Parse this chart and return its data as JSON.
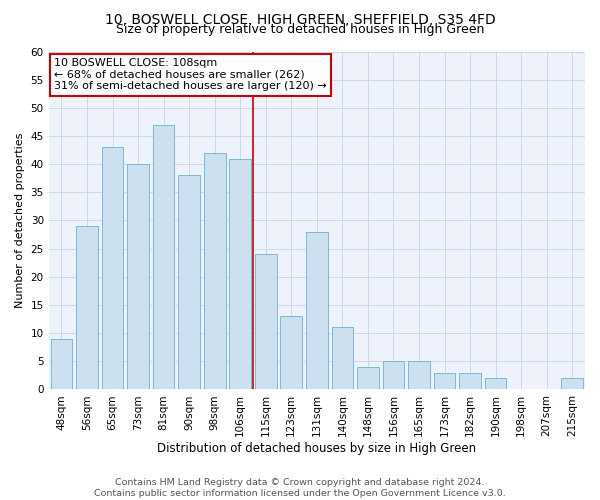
{
  "title1": "10, BOSWELL CLOSE, HIGH GREEN, SHEFFIELD, S35 4FD",
  "title2": "Size of property relative to detached houses in High Green",
  "xlabel": "Distribution of detached houses by size in High Green",
  "ylabel": "Number of detached properties",
  "categories": [
    "48sqm",
    "56sqm",
    "65sqm",
    "73sqm",
    "81sqm",
    "90sqm",
    "98sqm",
    "106sqm",
    "115sqm",
    "123sqm",
    "131sqm",
    "140sqm",
    "148sqm",
    "156sqm",
    "165sqm",
    "173sqm",
    "182sqm",
    "190sqm",
    "198sqm",
    "207sqm",
    "215sqm"
  ],
  "values": [
    9,
    29,
    43,
    40,
    47,
    38,
    42,
    41,
    24,
    13,
    28,
    11,
    4,
    5,
    5,
    3,
    3,
    2,
    0,
    0,
    2
  ],
  "bar_color": "#cce0f0",
  "bar_edge_color": "#7ab8d9",
  "grid_color": "#c8d4e8",
  "background_color": "#eef2fa",
  "vline_color": "#cc0000",
  "vline_x_index": 7,
  "annotation_text": "10 BOSWELL CLOSE: 108sqm\n← 68% of detached houses are smaller (262)\n31% of semi-detached houses are larger (120) →",
  "annotation_box_facecolor": "#ffffff",
  "annotation_box_edgecolor": "#cc0000",
  "ylim": [
    0,
    60
  ],
  "yticks": [
    0,
    5,
    10,
    15,
    20,
    25,
    30,
    35,
    40,
    45,
    50,
    55,
    60
  ],
  "footer1": "Contains HM Land Registry data © Crown copyright and database right 2024.",
  "footer2": "Contains public sector information licensed under the Open Government Licence v3.0.",
  "title1_fontsize": 10,
  "title2_fontsize": 9,
  "xlabel_fontsize": 8.5,
  "ylabel_fontsize": 8,
  "tick_fontsize": 7.5,
  "annotation_fontsize": 8,
  "footer_fontsize": 6.8
}
